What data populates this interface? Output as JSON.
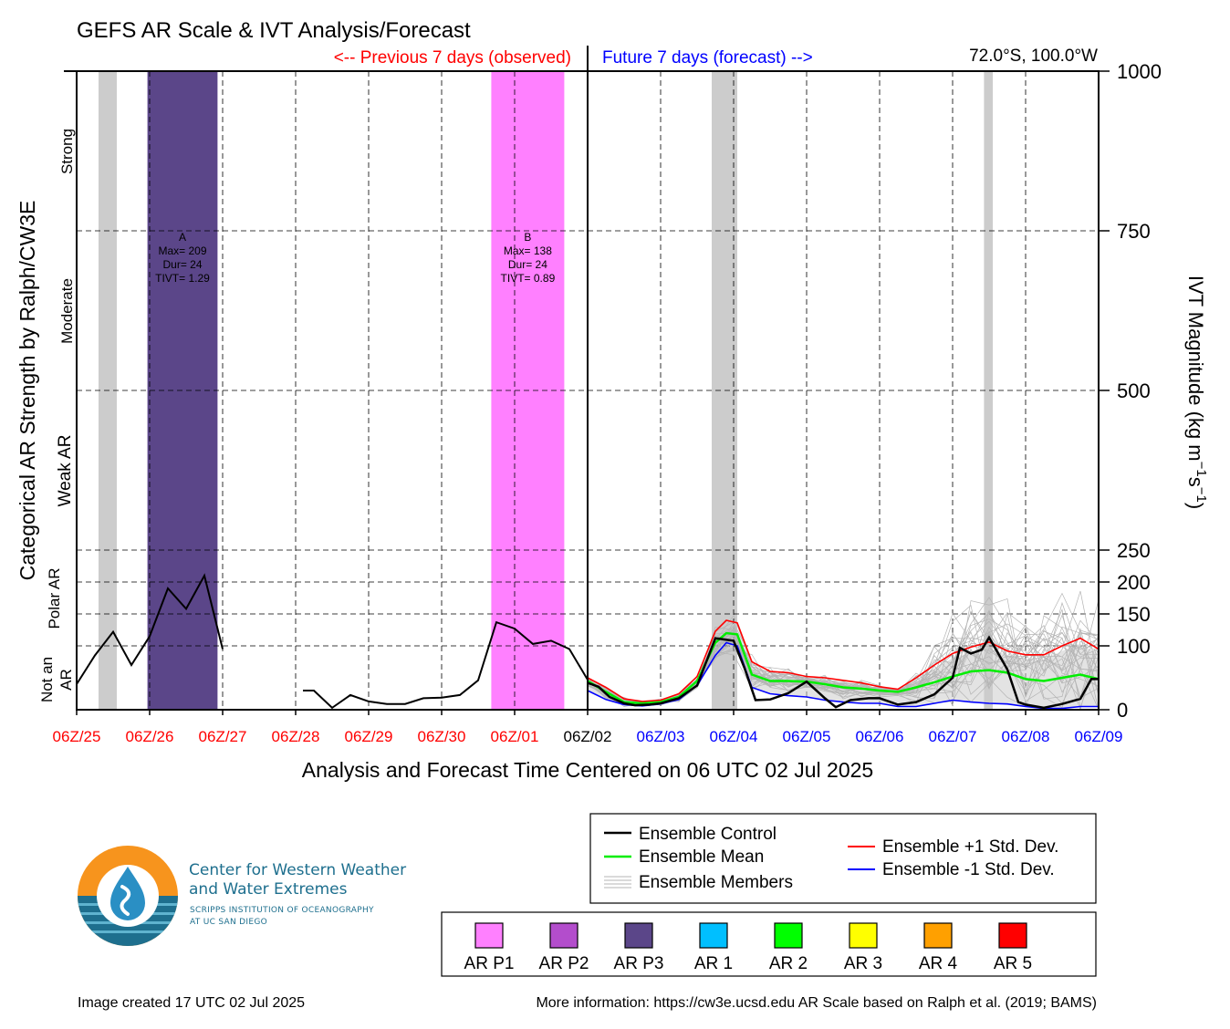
{
  "title": "GEFS AR Scale & IVT Analysis/Forecast",
  "header": {
    "previous_label": "<-- Previous 7 days (observed)",
    "future_label": "Future 7 days (forecast) -->",
    "location": "72.0°S, 100.0°W"
  },
  "colors": {
    "observed": "#ff0000",
    "forecast": "#0000ff",
    "control": "#000000",
    "mean": "#00ee00",
    "plus_std": "#ff0000",
    "minus_std": "#0000ff",
    "members": "#b4b4b4",
    "spread_fill": "#cccccc",
    "ar_p1": "#ff80ff",
    "ar_p2": "#b34dcc",
    "ar_p3": "#5b4689",
    "ar_1": "#00bfff",
    "ar_2": "#00ff00",
    "ar_3": "#ffff00",
    "ar_4": "#ffa000",
    "ar_5": "#ff0000",
    "landfall_shade": "#cccccc"
  },
  "axes": {
    "left_label": "Categorical AR Strength by Ralph/CW3E",
    "right_label_main": "IVT Magnitude (kg m",
    "right_label_sup1": "−1",
    "right_label_mid": "s",
    "right_label_sup2": "−1",
    "right_label_end": ")",
    "categories": [
      "Strong",
      "Moderate",
      "Weak AR",
      "Polar AR",
      "Not an",
      "AR"
    ],
    "right_ticks": [
      "1000",
      "750",
      "500",
      "250",
      "200",
      "150",
      "100",
      "0"
    ],
    "xlabel": "Analysis and Forecast Time Centered on 06 UTC 02 Jul 2025"
  },
  "chart_data": {
    "type": "line",
    "x_unit": "days relative to 06Z/02 Jul 2025",
    "x_ticks": [
      {
        "label": "06Z/25",
        "day": -7,
        "kind": "observed"
      },
      {
        "label": "06Z/26",
        "day": -6,
        "kind": "observed"
      },
      {
        "label": "06Z/27",
        "day": -5,
        "kind": "observed"
      },
      {
        "label": "06Z/28",
        "day": -4,
        "kind": "observed"
      },
      {
        "label": "06Z/29",
        "day": -3,
        "kind": "observed"
      },
      {
        "label": "06Z/30",
        "day": -2,
        "kind": "observed"
      },
      {
        "label": "06Z/01",
        "day": -1,
        "kind": "observed"
      },
      {
        "label": "06Z/02",
        "day": 0,
        "kind": "now"
      },
      {
        "label": "06Z/03",
        "day": 1,
        "kind": "forecast"
      },
      {
        "label": "06Z/04",
        "day": 2,
        "kind": "forecast"
      },
      {
        "label": "06Z/05",
        "day": 3,
        "kind": "forecast"
      },
      {
        "label": "06Z/06",
        "day": 4,
        "kind": "forecast"
      },
      {
        "label": "06Z/07",
        "day": 5,
        "kind": "forecast"
      },
      {
        "label": "06Z/08",
        "day": 6,
        "kind": "forecast"
      },
      {
        "label": "06Z/09",
        "day": 7,
        "kind": "forecast"
      }
    ],
    "y_ticks": [
      0,
      100,
      150,
      200,
      250,
      500,
      750,
      1000
    ],
    "y_range": [
      0,
      1000
    ],
    "ar_events": [
      {
        "name": "A",
        "max": "Max= 209",
        "dur": "Dur= 24",
        "tivt": "TIVT= 1.29",
        "start": -6.03,
        "end": -5.07,
        "category": "ar_p3"
      },
      {
        "name": "B",
        "max": "Max= 138",
        "dur": "Dur= 24",
        "tivt": "TIVT= 0.89",
        "start": -1.32,
        "end": -0.32,
        "category": "ar_p1"
      }
    ],
    "landfall_bands": [
      {
        "start": -6.7,
        "end": -6.45
      },
      {
        "start": 1.7,
        "end": 2.05
      },
      {
        "start": 5.43,
        "end": 5.55
      }
    ],
    "observed": [
      [
        [
          -7.0,
          40
        ],
        [
          -6.75,
          85
        ],
        [
          -6.5,
          122
        ],
        [
          -6.25,
          70
        ],
        [
          -6.0,
          115
        ],
        [
          -5.75,
          190
        ],
        [
          -5.5,
          158
        ],
        [
          -5.25,
          210
        ],
        [
          -5.0,
          95
        ]
      ],
      [
        [
          -3.9,
          30
        ],
        [
          -3.75,
          30
        ],
        [
          -3.5,
          3
        ],
        [
          -3.25,
          23
        ],
        [
          -3.0,
          13
        ],
        [
          -2.75,
          9
        ],
        [
          -2.5,
          9
        ],
        [
          -2.25,
          18
        ],
        [
          -2.0,
          19
        ],
        [
          -1.75,
          23
        ],
        [
          -1.5,
          46
        ],
        [
          -1.25,
          137
        ],
        [
          -1.0,
          127
        ],
        [
          -0.75,
          103
        ],
        [
          -0.5,
          108
        ],
        [
          -0.25,
          95
        ],
        [
          0.0,
          47
        ]
      ]
    ],
    "series": [
      {
        "name": "Ensemble Control",
        "key": "control",
        "points": [
          [
            0,
            42
          ],
          [
            0.15,
            36
          ],
          [
            0.3,
            20
          ],
          [
            0.5,
            10
          ],
          [
            0.65,
            7
          ],
          [
            0.85,
            8
          ],
          [
            1.0,
            10
          ],
          [
            1.25,
            18
          ],
          [
            1.5,
            38
          ],
          [
            1.75,
            112
          ],
          [
            2.0,
            108
          ],
          [
            2.15,
            65
          ],
          [
            2.3,
            15
          ],
          [
            2.5,
            16
          ],
          [
            2.75,
            26
          ],
          [
            3.0,
            44
          ],
          [
            3.25,
            18
          ],
          [
            3.4,
            4
          ],
          [
            3.6,
            15
          ],
          [
            3.85,
            18
          ],
          [
            4.0,
            18
          ],
          [
            4.25,
            8
          ],
          [
            4.5,
            12
          ],
          [
            4.75,
            24
          ],
          [
            5.0,
            50
          ],
          [
            5.1,
            97
          ],
          [
            5.25,
            88
          ],
          [
            5.4,
            94
          ],
          [
            5.5,
            113
          ],
          [
            5.75,
            63
          ],
          [
            5.9,
            12
          ],
          [
            6.0,
            8
          ],
          [
            6.25,
            3
          ],
          [
            6.5,
            9
          ],
          [
            6.75,
            17
          ],
          [
            6.9,
            48
          ],
          [
            7.0,
            48
          ]
        ]
      },
      {
        "name": "Ensemble Mean",
        "key": "mean",
        "points": [
          [
            0,
            45
          ],
          [
            0.25,
            28
          ],
          [
            0.5,
            12
          ],
          [
            0.75,
            10
          ],
          [
            1.0,
            12
          ],
          [
            1.25,
            20
          ],
          [
            1.5,
            45
          ],
          [
            1.75,
            105
          ],
          [
            1.9,
            120
          ],
          [
            2.05,
            118
          ],
          [
            2.25,
            55
          ],
          [
            2.5,
            45
          ],
          [
            2.75,
            45
          ],
          [
            3.0,
            44
          ],
          [
            3.25,
            40
          ],
          [
            3.5,
            35
          ],
          [
            3.75,
            33
          ],
          [
            4.0,
            30
          ],
          [
            4.25,
            28
          ],
          [
            4.5,
            35
          ],
          [
            4.75,
            43
          ],
          [
            5.0,
            52
          ],
          [
            5.25,
            60
          ],
          [
            5.5,
            62
          ],
          [
            5.75,
            58
          ],
          [
            6.0,
            48
          ],
          [
            6.25,
            45
          ],
          [
            6.5,
            50
          ],
          [
            6.75,
            55
          ],
          [
            7.0,
            48
          ]
        ]
      },
      {
        "name": "Ensemble +1 Std. Dev.",
        "key": "plus_std",
        "points": [
          [
            0,
            50
          ],
          [
            0.25,
            35
          ],
          [
            0.5,
            17
          ],
          [
            0.75,
            13
          ],
          [
            1.0,
            15
          ],
          [
            1.25,
            25
          ],
          [
            1.5,
            52
          ],
          [
            1.75,
            123
          ],
          [
            1.9,
            140
          ],
          [
            2.05,
            136
          ],
          [
            2.25,
            75
          ],
          [
            2.5,
            60
          ],
          [
            2.75,
            58
          ],
          [
            3.0,
            52
          ],
          [
            3.25,
            50
          ],
          [
            3.5,
            46
          ],
          [
            3.75,
            42
          ],
          [
            4.0,
            36
          ],
          [
            4.25,
            32
          ],
          [
            4.5,
            50
          ],
          [
            4.75,
            70
          ],
          [
            5.0,
            88
          ],
          [
            5.25,
            98
          ],
          [
            5.5,
            106
          ],
          [
            5.75,
            92
          ],
          [
            6.0,
            86
          ],
          [
            6.25,
            86
          ],
          [
            6.5,
            100
          ],
          [
            6.75,
            112
          ],
          [
            7.0,
            95
          ]
        ]
      },
      {
        "name": "Ensemble -1 Std. Dev.",
        "key": "minus_std",
        "points": [
          [
            0,
            30
          ],
          [
            0.25,
            16
          ],
          [
            0.5,
            8
          ],
          [
            0.75,
            6
          ],
          [
            1.0,
            9
          ],
          [
            1.25,
            16
          ],
          [
            1.5,
            38
          ],
          [
            1.75,
            85
          ],
          [
            1.9,
            105
          ],
          [
            2.05,
            100
          ],
          [
            2.25,
            35
          ],
          [
            2.5,
            25
          ],
          [
            2.75,
            22
          ],
          [
            3.0,
            20
          ],
          [
            3.25,
            15
          ],
          [
            3.5,
            12
          ],
          [
            3.75,
            10
          ],
          [
            4.0,
            10
          ],
          [
            4.25,
            5
          ],
          [
            4.5,
            5
          ],
          [
            4.75,
            10
          ],
          [
            5.0,
            15
          ],
          [
            5.25,
            12
          ],
          [
            5.5,
            10
          ],
          [
            5.75,
            9
          ],
          [
            6.0,
            5
          ],
          [
            6.25,
            2
          ],
          [
            6.5,
            2
          ],
          [
            6.75,
            5
          ],
          [
            7.0,
            5
          ]
        ]
      }
    ]
  },
  "legend": {
    "control": "Ensemble Control",
    "mean": "Ensemble Mean",
    "members": "Ensemble Members",
    "plus_std": "Ensemble +1 Std. Dev.",
    "minus_std": "Ensemble -1 Std. Dev."
  },
  "scale_legend": [
    {
      "label": "AR P1",
      "color": "#ff80ff"
    },
    {
      "label": "AR P2",
      "color": "#b34dcc"
    },
    {
      "label": "AR P3",
      "color": "#5b4689"
    },
    {
      "label": "AR 1",
      "color": "#00bfff"
    },
    {
      "label": "AR 2",
      "color": "#00ff00"
    },
    {
      "label": "AR 3",
      "color": "#ffff00"
    },
    {
      "label": "AR 4",
      "color": "#ffa000"
    },
    {
      "label": "AR 5",
      "color": "#ff0000"
    }
  ],
  "logo": {
    "line1": "Center for Western Weather",
    "line2": "and Water Extremes",
    "line3": "SCRIPPS INSTITUTION OF OCEANOGRAPHY",
    "line4": "AT UC SAN DIEGO"
  },
  "footer": {
    "created": "Image created 17 UTC 02 Jul 2025",
    "info": "More information: https://cw3e.ucsd.edu AR Scale based on Ralph et al. (2019; BAMS)"
  }
}
